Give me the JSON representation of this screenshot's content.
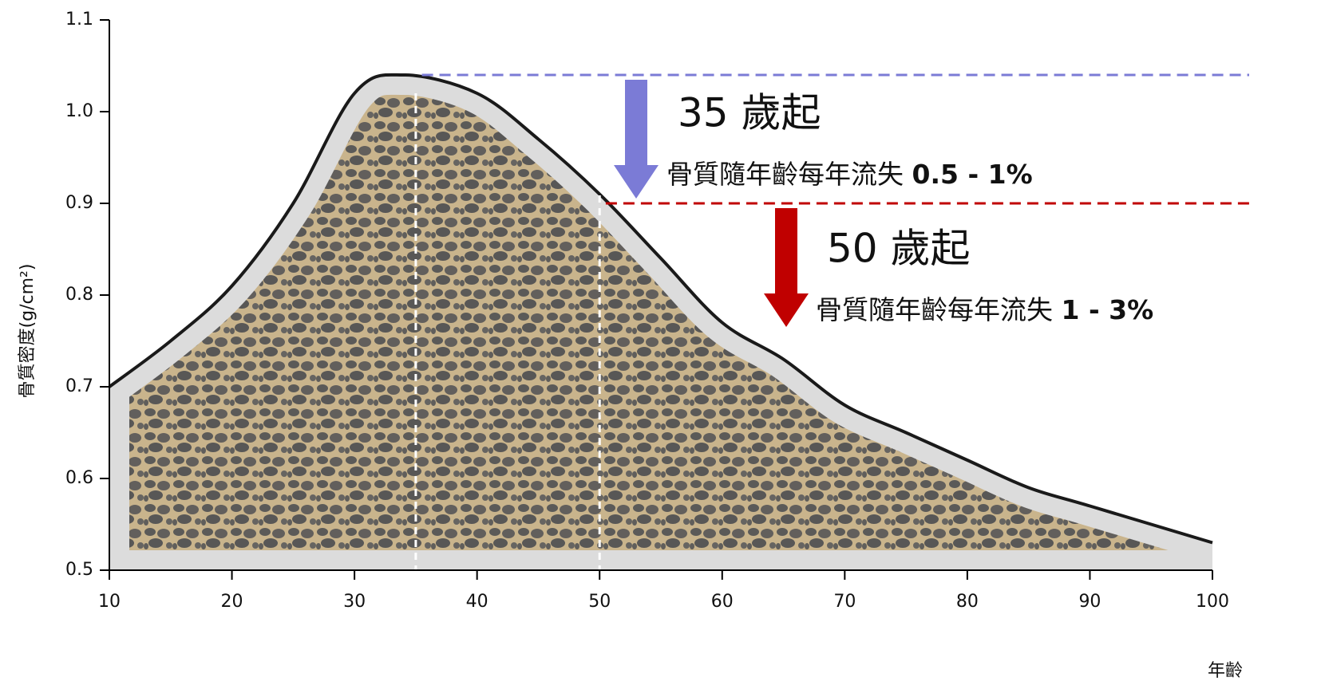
{
  "chart_data": {
    "type": "area",
    "y_label": "骨質密度(g/cm²)",
    "x_label": "年齡",
    "x": [
      10,
      15,
      20,
      25,
      30,
      34,
      40,
      45,
      50,
      55,
      60,
      65,
      70,
      75,
      80,
      85,
      90,
      100
    ],
    "series": [
      {
        "color": "#1a1a1a",
        "values": [
          0.7,
          0.75,
          0.81,
          0.9,
          1.02,
          1.04,
          1.02,
          0.97,
          0.91,
          0.84,
          0.77,
          0.73,
          0.68,
          0.65,
          0.62,
          0.59,
          0.57,
          0.53
        ]
      }
    ],
    "xlim": [
      10,
      100
    ],
    "xticks": [
      10,
      20,
      30,
      40,
      50,
      60,
      70,
      80,
      90,
      100
    ],
    "ylim": [
      0.5,
      1.1
    ],
    "yticks": [
      0.5,
      0.6,
      0.7,
      0.8,
      0.9,
      {
        "value": 1,
        "label": "1.0"
      },
      1.1
    ],
    "vlines": [
      35,
      50
    ],
    "annotations": [
      {
        "value": 1.04,
        "x_start": 35.5,
        "color": "#7b7bd6",
        "heading": "35 歲起",
        "text": "骨質隨年齡每年流失",
        "rate": "0.5 - 1%"
      },
      {
        "value": 0.9,
        "x_start": 50.5,
        "color": "#c00000",
        "heading": "50 歲起",
        "text": "骨質隨年齡每年流失",
        "rate": "1 - 3%"
      }
    ]
  }
}
